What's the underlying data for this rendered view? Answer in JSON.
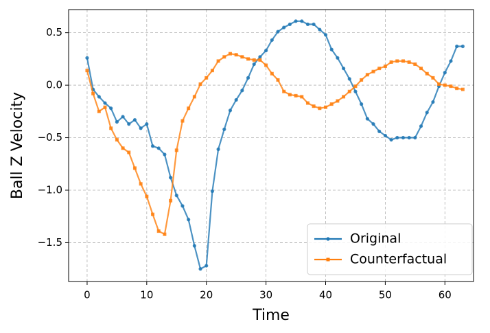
{
  "chart_data": {
    "type": "line",
    "xlabel": "Time",
    "ylabel": "Ball Z Velocity",
    "x": [
      0,
      1,
      2,
      3,
      4,
      5,
      6,
      7,
      8,
      9,
      10,
      11,
      12,
      13,
      14,
      15,
      16,
      17,
      18,
      19,
      20,
      21,
      22,
      23,
      24,
      25,
      26,
      27,
      28,
      29,
      30,
      31,
      32,
      33,
      34,
      35,
      36,
      37,
      38,
      39,
      40,
      41,
      42,
      43,
      44,
      45,
      46,
      47,
      48,
      49,
      50,
      51,
      52,
      53,
      54,
      55,
      56,
      57,
      58,
      59,
      60,
      61,
      62,
      63
    ],
    "series": [
      {
        "name": "Original",
        "color": "#1f77b4",
        "marker": "circle",
        "values": [
          0.26,
          -0.04,
          -0.11,
          -0.17,
          -0.22,
          -0.35,
          -0.3,
          -0.37,
          -0.33,
          -0.41,
          -0.37,
          -0.58,
          -0.6,
          -0.66,
          -0.88,
          -1.05,
          -1.15,
          -1.28,
          -1.53,
          -1.75,
          -1.72,
          -1.01,
          -0.61,
          -0.42,
          -0.24,
          -0.14,
          -0.05,
          0.07,
          0.2,
          0.27,
          0.33,
          0.43,
          0.51,
          0.55,
          0.58,
          0.61,
          0.61,
          0.58,
          0.58,
          0.53,
          0.48,
          0.34,
          0.26,
          0.16,
          0.06,
          -0.06,
          -0.18,
          -0.32,
          -0.37,
          -0.44,
          -0.48,
          -0.52,
          -0.5,
          -0.5,
          -0.5,
          -0.5,
          -0.39,
          -0.26,
          -0.16,
          -0.01,
          0.12,
          0.23,
          0.37,
          0.37
        ]
      },
      {
        "name": "Counterfactual",
        "color": "#ff7f0e",
        "marker": "square",
        "values": [
          0.14,
          -0.08,
          -0.25,
          -0.21,
          -0.41,
          -0.52,
          -0.6,
          -0.64,
          -0.79,
          -0.94,
          -1.06,
          -1.23,
          -1.39,
          -1.42,
          -1.1,
          -0.62,
          -0.34,
          -0.22,
          -0.11,
          0.01,
          0.07,
          0.14,
          0.23,
          0.27,
          0.3,
          0.29,
          0.27,
          0.25,
          0.24,
          0.24,
          0.19,
          0.11,
          0.05,
          -0.06,
          -0.09,
          -0.1,
          -0.11,
          -0.17,
          -0.2,
          -0.22,
          -0.21,
          -0.18,
          -0.15,
          -0.11,
          -0.06,
          -0.01,
          0.05,
          0.1,
          0.13,
          0.16,
          0.18,
          0.22,
          0.23,
          0.23,
          0.22,
          0.2,
          0.16,
          0.11,
          0.07,
          0.01,
          0.0,
          -0.01,
          -0.03,
          -0.04
        ]
      }
    ],
    "xlim": [
      -3.1,
      64.8
    ],
    "ylim": [
      -1.87,
      0.72
    ],
    "xticks": [
      0,
      10,
      20,
      30,
      40,
      50,
      60
    ],
    "yticks": [
      {
        "value": -1.5,
        "label": "−1.5"
      },
      {
        "value": -1.0,
        "label": "−1.0"
      },
      {
        "value": -0.5,
        "label": "−0.5"
      },
      {
        "value": 0.0,
        "label": "0.0"
      },
      0.5
    ],
    "grid": true,
    "legend": "lower right"
  }
}
